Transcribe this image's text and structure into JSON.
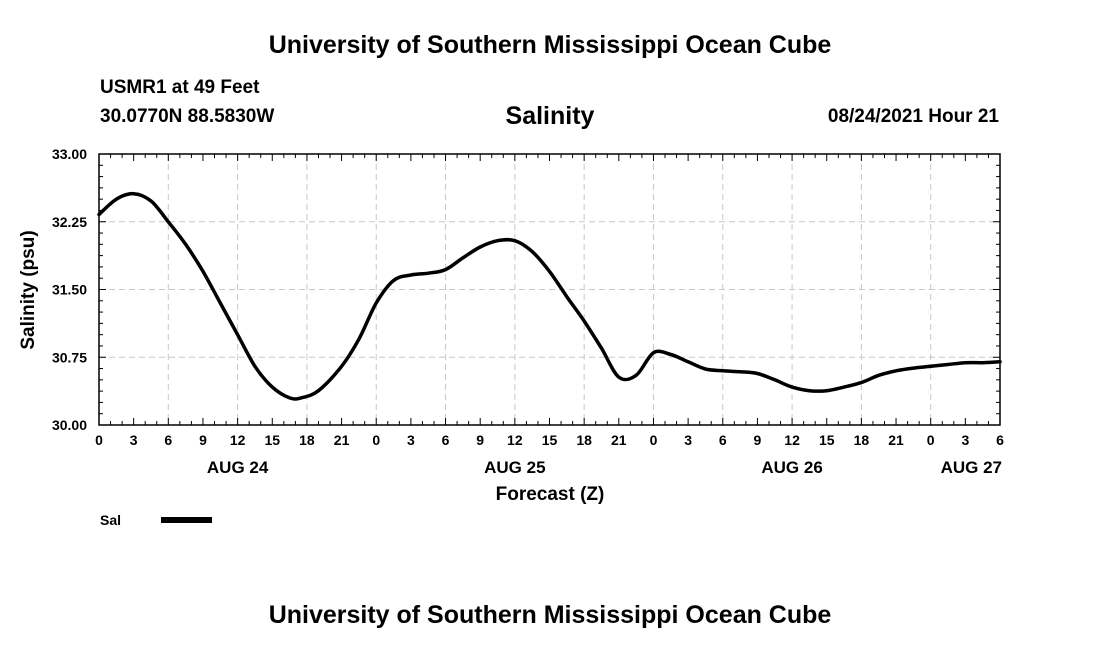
{
  "header": {
    "title_top": "University of Southern Mississippi Ocean Cube",
    "station": "USMR1 at 49 Feet",
    "coords": "30.0770N  88.5830W",
    "variable": "Salinity",
    "timestamp": "08/24/2021 Hour 21"
  },
  "footer": {
    "title_bottom": "University of Southern Mississippi Ocean Cube"
  },
  "chart_data": {
    "type": "line",
    "title": "Salinity",
    "xlabel": "Forecast (Z)",
    "ylabel": "Salinity (psu)",
    "xlim": [
      0,
      78
    ],
    "ylim": [
      30.0,
      33.0
    ],
    "grid": true,
    "y_ticks": [
      30.0,
      30.75,
      31.5,
      32.25,
      33.0
    ],
    "y_tick_labels": [
      "30.00",
      "30.75",
      "31.50",
      "32.25",
      "33.00"
    ],
    "x_ticks": [
      0,
      3,
      6,
      9,
      12,
      15,
      18,
      21,
      24,
      27,
      30,
      33,
      36,
      39,
      42,
      45,
      48,
      51,
      54,
      57,
      60,
      63,
      66,
      69,
      72,
      75,
      78
    ],
    "x_tick_labels": [
      "0",
      "3",
      "6",
      "9",
      "12",
      "15",
      "18",
      "21",
      "0",
      "3",
      "6",
      "9",
      "12",
      "15",
      "18",
      "21",
      "0",
      "3",
      "6",
      "9",
      "12",
      "15",
      "18",
      "21",
      "0",
      "3",
      "6"
    ],
    "date_labels": [
      {
        "x": 12,
        "label": "AUG 24"
      },
      {
        "x": 36,
        "label": "AUG 25"
      },
      {
        "x": 60,
        "label": "AUG 26"
      },
      {
        "x": 75,
        "label": "AUG 27"
      }
    ],
    "legend_position": "bottom-left",
    "series": [
      {
        "name": "Sal",
        "color": "#000000",
        "x": [
          0,
          1.5,
          3,
          4.5,
          6,
          7.5,
          9,
          10.5,
          12,
          13.5,
          15,
          16.5,
          17.5,
          19,
          21,
          22.5,
          24,
          25.5,
          27,
          28.5,
          30,
          31.5,
          33,
          34.5,
          36,
          37.5,
          39,
          40.5,
          42,
          43.5,
          45,
          46.5,
          48,
          49.5,
          51,
          52.5,
          54,
          55.5,
          57,
          58.5,
          60,
          61.5,
          63,
          64.5,
          66,
          67.5,
          69,
          70.5,
          72,
          73.5,
          75,
          76.5,
          78
        ],
        "values": [
          32.33,
          32.5,
          32.56,
          32.48,
          32.25,
          32.0,
          31.7,
          31.35,
          31.0,
          30.65,
          30.42,
          30.3,
          30.3,
          30.38,
          30.65,
          30.95,
          31.35,
          31.6,
          31.66,
          31.68,
          31.72,
          31.85,
          31.97,
          32.04,
          32.04,
          31.92,
          31.7,
          31.42,
          31.15,
          30.85,
          30.53,
          30.55,
          30.8,
          30.78,
          30.7,
          30.62,
          30.6,
          30.59,
          30.57,
          30.5,
          30.42,
          30.38,
          30.38,
          30.42,
          30.47,
          30.55,
          30.6,
          30.63,
          30.65,
          30.67,
          30.69,
          30.69,
          30.7
        ]
      }
    ]
  }
}
